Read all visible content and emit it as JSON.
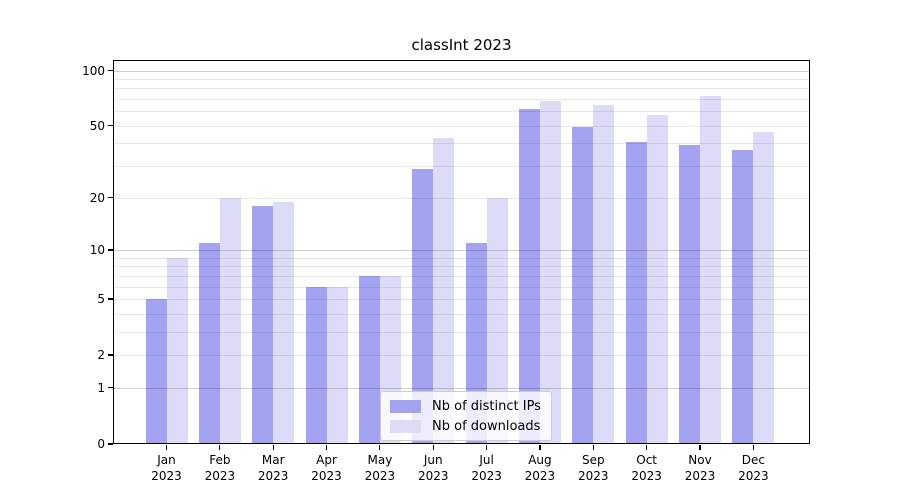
{
  "title": "classInt 2023",
  "colors": {
    "bar_distinct_ips": "#a3a3f2",
    "bar_downloads": "#dcdcf9",
    "grid_minor": "#e8e8e8",
    "grid_major": "#cfcfcf",
    "spine": "#000000",
    "legend_border": "#cccccc",
    "background": "#ffffff"
  },
  "chart_data": {
    "type": "bar",
    "title": "classInt 2023",
    "months": [
      "Jan",
      "Feb",
      "Mar",
      "Apr",
      "May",
      "Jun",
      "Jul",
      "Aug",
      "Sep",
      "Oct",
      "Nov",
      "Dec"
    ],
    "year": "2023",
    "categories": [
      "Jan 2023",
      "Feb 2023",
      "Mar 2023",
      "Apr 2023",
      "May 2023",
      "Jun 2023",
      "Jul 2023",
      "Aug 2023",
      "Sep 2023",
      "Oct 2023",
      "Nov 2023",
      "Dec 2023"
    ],
    "series": [
      {
        "name": "Nb of distinct IPs",
        "color": "#a3a3f2",
        "values": [
          5,
          11,
          18,
          6,
          7,
          29,
          11,
          62,
          49,
          41,
          39,
          37
        ]
      },
      {
        "name": "Nb of downloads",
        "color": "#dcdcf9",
        "values": [
          9,
          20,
          19,
          6,
          7,
          43,
          20,
          68,
          65,
          57,
          73,
          46
        ]
      }
    ],
    "xlabel": "",
    "ylabel": "",
    "yscale": "log1p",
    "ylim": [
      0,
      114
    ],
    "y_ticks": [
      100,
      50,
      20,
      10,
      5,
      2,
      1,
      0
    ],
    "y_minor_gridlines": [
      2,
      3,
      4,
      5,
      6,
      7,
      8,
      9,
      20,
      30,
      40,
      50,
      60,
      70,
      80,
      90
    ],
    "y_major_gridlines": [
      1,
      10,
      100
    ],
    "grid": "on",
    "legend_position": "lower center"
  }
}
